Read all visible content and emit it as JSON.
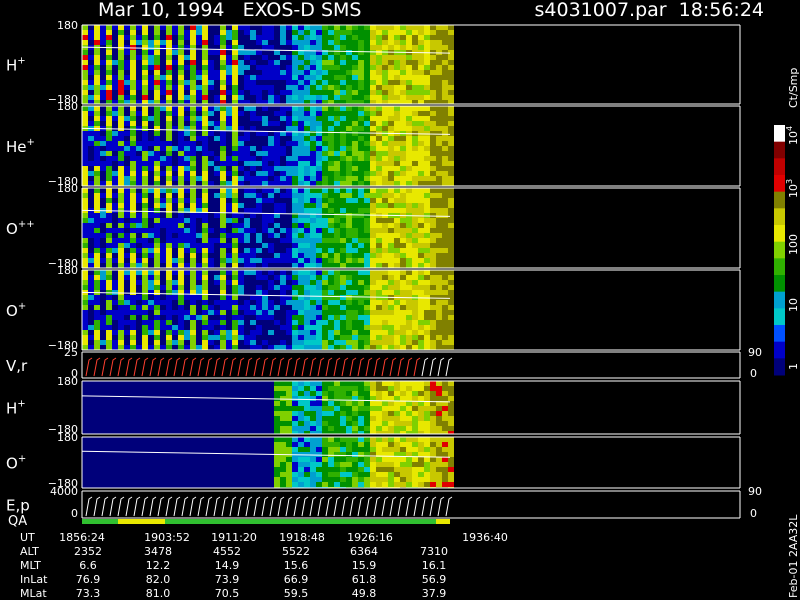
{
  "header": {
    "title": "Mar 10, 1994   EXOS-D SMS",
    "file": "s4031007.par  18:56:24"
  },
  "panels": [
    {
      "label": "H",
      "sup": "+",
      "yticks": [
        "180",
        "−180"
      ]
    },
    {
      "label": "He",
      "sup": "+",
      "yticks": [
        "180",
        "−180"
      ]
    },
    {
      "label": "O",
      "sup": "++",
      "yticks": [
        "180",
        "−180"
      ]
    },
    {
      "label": "O",
      "sup": "+",
      "yticks": [
        "180",
        "−180"
      ]
    },
    {
      "label": "V,r",
      "yticks": [
        "25",
        "0"
      ],
      "right_ticks": [
        "90",
        "0"
      ]
    },
    {
      "label": "H",
      "sup": "+",
      "yticks": [
        "180",
        "−180"
      ]
    },
    {
      "label": "O",
      "sup": "+",
      "yticks": [
        "180",
        "−180"
      ]
    },
    {
      "label": "E,p",
      "yticks": [
        "4000",
        "0"
      ],
      "right_ticks": [
        "90",
        "0"
      ],
      "qa": "QA"
    }
  ],
  "colorbar": {
    "title": "Ct/Smp",
    "ticks": [
      {
        "base": "10",
        "exp": "4"
      },
      {
        "base": "10",
        "exp": "3"
      },
      "100",
      "10",
      "1"
    ]
  },
  "footer": {
    "rows": [
      {
        "label": "UT",
        "values": [
          "1856:24",
          "1903:52",
          "1911:20",
          "1918:48",
          "1926:16",
          "1936:40"
        ]
      },
      {
        "label": "ALT",
        "values": [
          "2352",
          "3478",
          "4552",
          "5522",
          "6364",
          "7310"
        ]
      },
      {
        "label": "MLT",
        "values": [
          "6.6",
          "12.2",
          "14.9",
          "15.6",
          "15.9",
          "16.1"
        ]
      },
      {
        "label": "InLat",
        "values": [
          "76.9",
          "82.0",
          "73.9",
          "66.9",
          "61.8",
          "56.9"
        ]
      },
      {
        "label": "MLat",
        "values": [
          "73.3",
          "81.0",
          "70.5",
          "59.5",
          "49.8",
          "37.9"
        ]
      }
    ]
  },
  "note": "Feb-01 2AA32L"
}
